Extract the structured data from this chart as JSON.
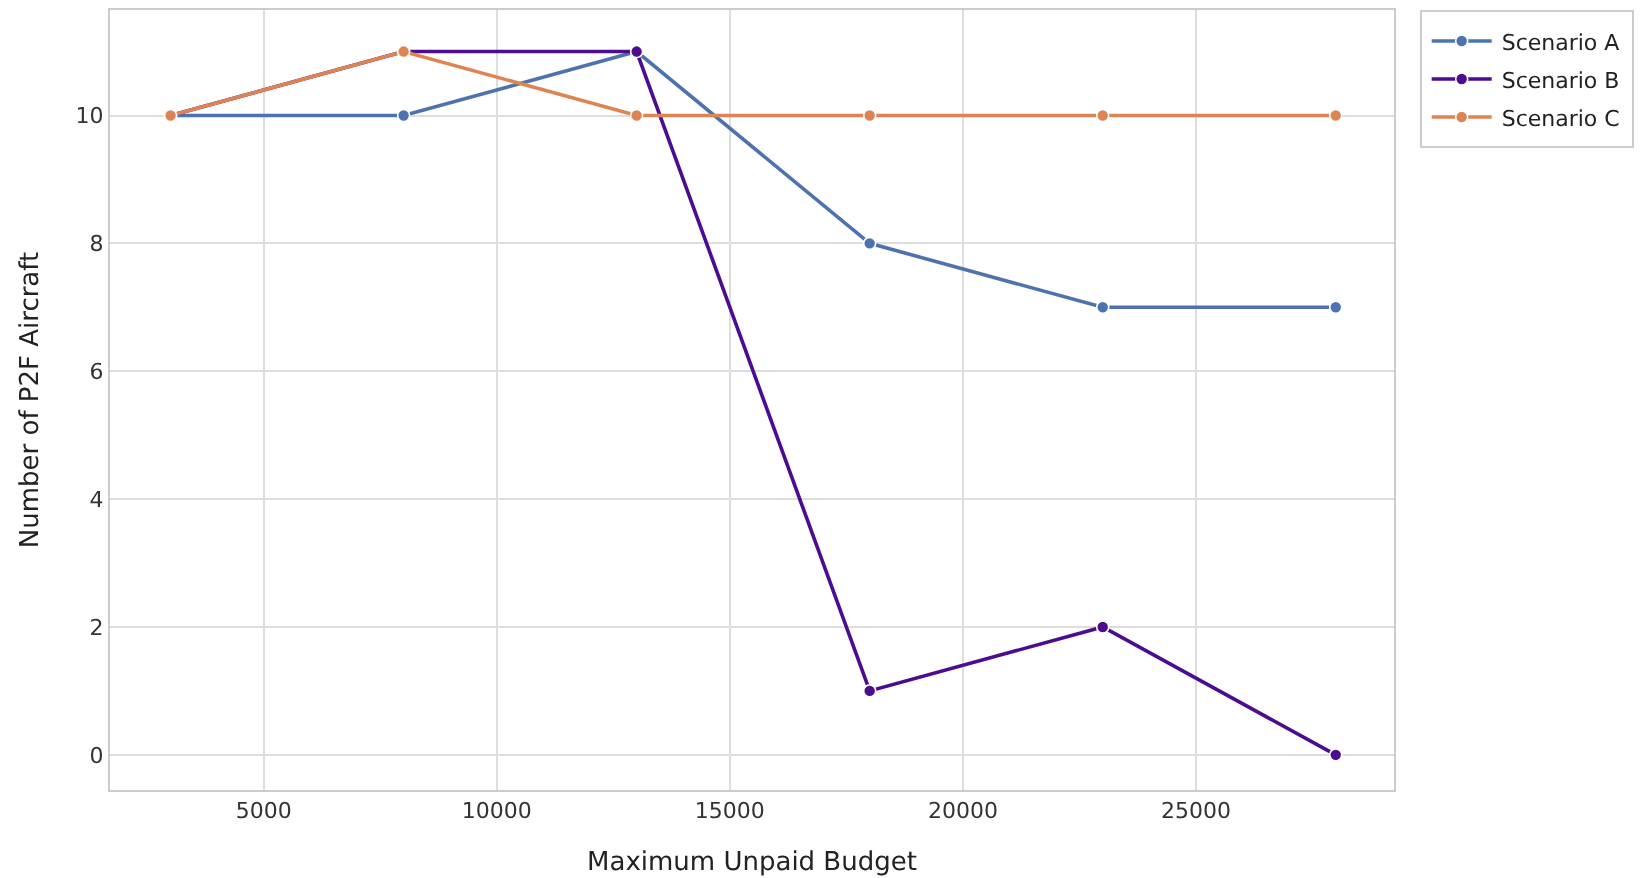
{
  "chart_data": {
    "type": "line",
    "xlabel": "Maximum Unpaid Budget",
    "ylabel": "Number of P2F Aircraft",
    "x": [
      3000,
      8000,
      13000,
      18000,
      23000,
      28000
    ],
    "series": [
      {
        "name": "Scenario A",
        "color": "#4c72b0",
        "values": [
          10,
          10,
          11,
          8,
          7,
          7
        ]
      },
      {
        "name": "Scenario B",
        "color": "#4b0c8f",
        "values": [
          10,
          11,
          11,
          1,
          2,
          0
        ]
      },
      {
        "name": "Scenario C",
        "color": "#dd8452",
        "values": [
          10,
          11,
          10,
          10,
          10,
          10
        ]
      }
    ],
    "xlim": [
      1700,
      29250
    ],
    "xticks": [
      5000,
      10000,
      15000,
      20000,
      25000
    ],
    "ylim": [
      -0.55,
      11.65
    ],
    "yticks": [
      0,
      2,
      4,
      6,
      8,
      10
    ],
    "grid": true,
    "legend": "top right",
    "marker": "circle",
    "line_style": "solid"
  }
}
